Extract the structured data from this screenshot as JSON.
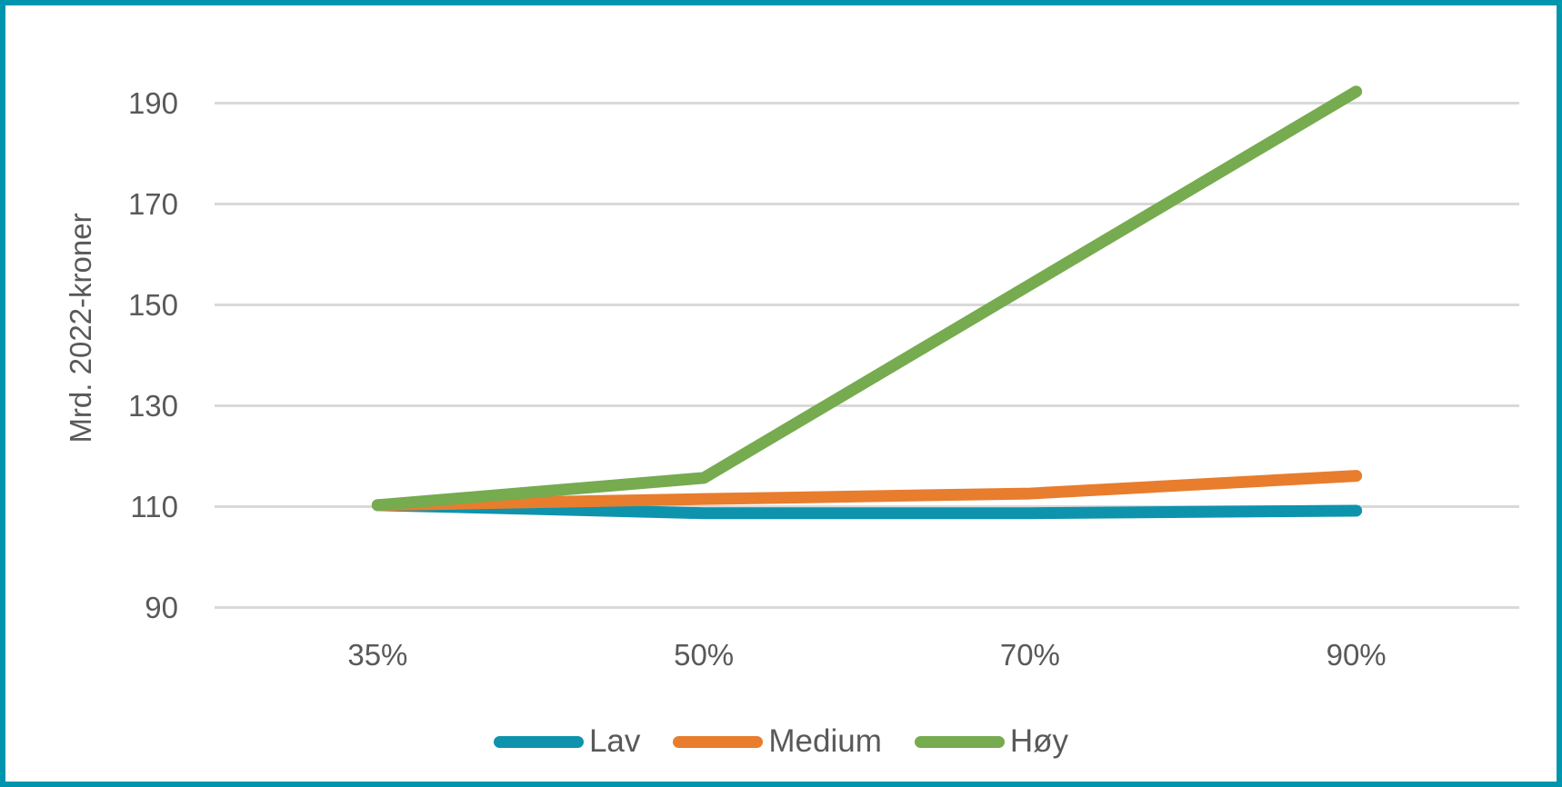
{
  "frame": {
    "border_color": "#0095ae",
    "background_color": "#ffffff"
  },
  "chart_data": {
    "type": "line",
    "title": "",
    "xlabel": "",
    "ylabel": "Mrd. 2022-kroner",
    "categories": [
      "35%",
      "50%",
      "70%",
      "90%"
    ],
    "series": [
      {
        "name": "Lav",
        "color": "#0e93ad",
        "values": [
          110.3,
          108.7,
          108.7,
          109.2
        ]
      },
      {
        "name": "Medium",
        "color": "#e87d2e",
        "values": [
          110.3,
          111.5,
          112.6,
          116.1
        ]
      },
      {
        "name": "Høy",
        "color": "#76ab4f",
        "values": [
          110.3,
          115.7,
          154.0,
          192.3
        ]
      }
    ],
    "y_ticks": [
      90,
      110,
      130,
      150,
      170,
      190
    ],
    "ylim": [
      90,
      190
    ],
    "grid": "horizontal-only",
    "gridline_color": "#d9d9d9",
    "text_color": "#595959",
    "legend_position": "bottom",
    "line_width": 13
  }
}
